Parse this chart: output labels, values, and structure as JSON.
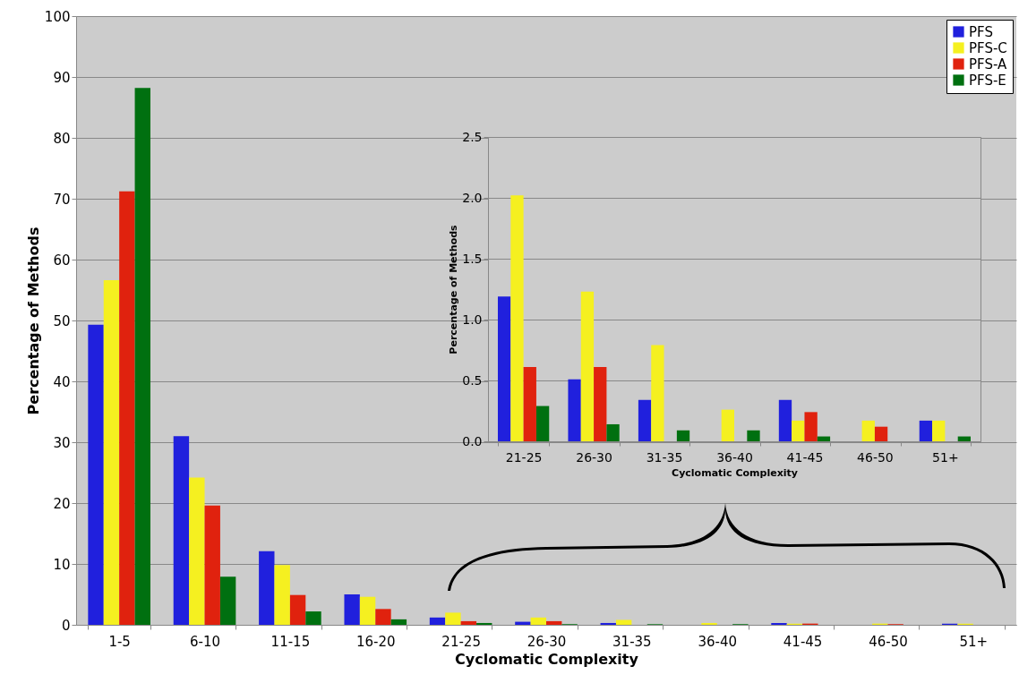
{
  "chart_data": [
    {
      "type": "bar",
      "xlabel": "Cyclomatic Complexity",
      "ylabel": "Percentage of Methods",
      "categories": [
        "1-5",
        "6-10",
        "11-15",
        "16-20",
        "21-25",
        "26-30",
        "31-35",
        "36-40",
        "41-45",
        "46-50",
        "51+"
      ],
      "series": [
        {
          "name": "PFS",
          "color": "#2020dd",
          "values": [
            49.3,
            31.0,
            12.1,
            5.0,
            1.2,
            0.5,
            0.3,
            0,
            0.3,
            0,
            0.2
          ]
        },
        {
          "name": "PFS-C",
          "color": "#f5f020",
          "values": [
            56.6,
            24.2,
            9.8,
            4.6,
            2.0,
            1.2,
            0.8,
            0.3,
            0.2,
            0.2,
            0.2
          ]
        },
        {
          "name": "PFS-A",
          "color": "#e0220e",
          "values": [
            71.2,
            19.6,
            4.9,
            2.6,
            0.6,
            0.6,
            0,
            0,
            0.2,
            0.1,
            0
          ]
        },
        {
          "name": "PFS-E",
          "color": "#007010",
          "values": [
            88.2,
            7.9,
            2.2,
            0.9,
            0.3,
            0.1,
            0.1,
            0.1,
            0.0,
            0,
            0.0
          ]
        }
      ],
      "ylim": [
        0,
        100
      ],
      "yticks": [
        0,
        10,
        20,
        30,
        40,
        50,
        60,
        70,
        80,
        90,
        100
      ],
      "grid": "y",
      "legend": "top right"
    },
    {
      "type": "bar",
      "xlabel": "Cyclomatic Complexity",
      "ylabel": "Percentage of Methods",
      "categories": [
        "21-25",
        "26-30",
        "31-35",
        "36-40",
        "41-45",
        "46-50",
        "51+"
      ],
      "series": [
        {
          "color": "#2020dd",
          "values": [
            1.19,
            0.51,
            0.34,
            0,
            0.34,
            0,
            0.17
          ]
        },
        {
          "color": "#f5f020",
          "values": [
            2.02,
            1.23,
            0.79,
            0.26,
            0.17,
            0.17,
            0.17
          ]
        },
        {
          "color": "#e0220e",
          "values": [
            0.61,
            0.61,
            0,
            0,
            0.24,
            0.12,
            0
          ]
        },
        {
          "color": "#007010",
          "values": [
            0.29,
            0.14,
            0.09,
            0.09,
            0.04,
            0,
            0.04
          ]
        }
      ],
      "ylim": [
        0,
        2.5
      ],
      "yticks": [
        {
          "value": 0,
          "label": "0.0"
        },
        0.5,
        {
          "value": 1,
          "label": "1.0"
        },
        1.5,
        {
          "value": 2,
          "label": "2.0"
        },
        2.5
      ],
      "grid": "y"
    }
  ]
}
